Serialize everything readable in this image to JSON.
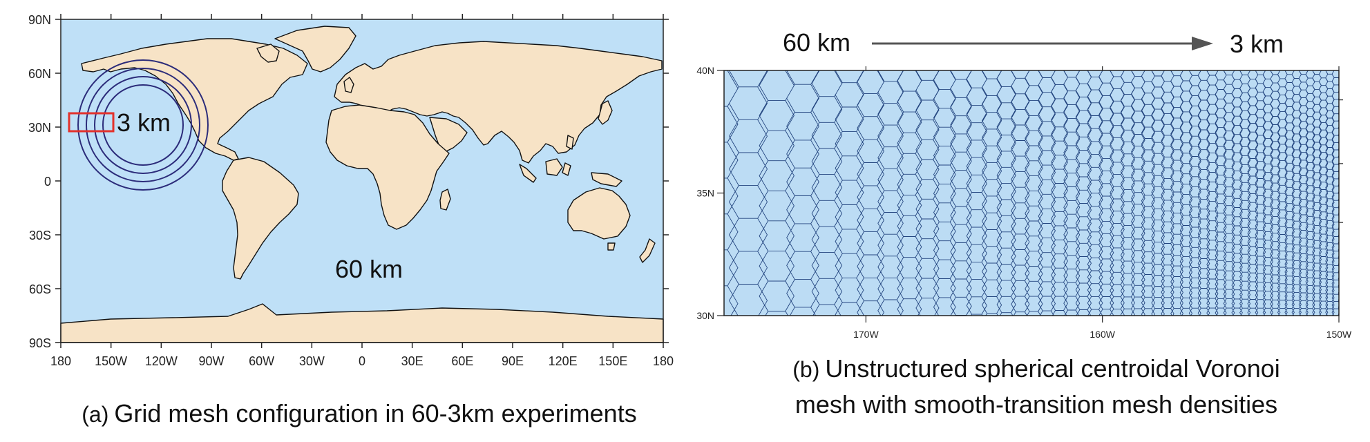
{
  "panel_a": {
    "caption_tag": "(a)",
    "caption": "Grid mesh configuration in 60-3km experiments",
    "y_ticks": [
      "90N",
      "60N",
      "30N",
      "0",
      "30S",
      "60S",
      "90S"
    ],
    "x_ticks": [
      "180",
      "150W",
      "120W",
      "90W",
      "60W",
      "30W",
      "0",
      "30E",
      "60E",
      "90E",
      "120E",
      "150E",
      "180"
    ],
    "fine_label": "3 km",
    "coarse_label": "60 km",
    "colors": {
      "ocean": "#bfe0f7",
      "land": "#f7e3c6",
      "coast": "#111111",
      "rings": "#2c2c7a",
      "box": "#e3312b"
    }
  },
  "panel_b": {
    "caption_tag": "(b)",
    "caption_line1": "Unstructured spherical centroidal Voronoi",
    "caption_line2": "mesh with smooth-transition mesh densities",
    "arrow_from": "60 km",
    "arrow_to": "3 km",
    "y_ticks": [
      "40N",
      "35N",
      "30N"
    ],
    "x_ticks": [
      "170W",
      "160W",
      "150W"
    ],
    "colors": {
      "fill": "#bcdcf4",
      "mesh": "#1a3c78",
      "arrow": "#555555"
    }
  }
}
